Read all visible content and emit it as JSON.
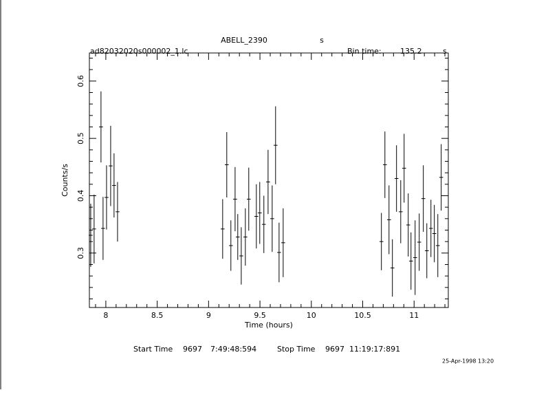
{
  "chart_data": {
    "type": "errorbar",
    "title": "ABELL_2390",
    "title_unit": "s",
    "file_name": "ad82032020s000002_1.lc",
    "bin_time_label": "Bin time:",
    "bin_time": 135.2,
    "bin_time_unit": "s",
    "x_label": "Time (hours)",
    "y_label": "Counts/s",
    "start_label": "Start Time",
    "start_day": 9697,
    "start_time": "7:49:48:594",
    "stop_label": "Stop Time",
    "stop_day": 9697,
    "stop_time": "11:19:17:891",
    "date_stamp": "25-Apr-1998 13:20",
    "xlim": [
      7.84,
      11.333
    ],
    "ylim": [
      0.205,
      0.649
    ],
    "xticks": [
      8,
      8.5,
      9,
      9.5,
      10,
      10.5,
      11
    ],
    "yticks": [
      0.3,
      0.4,
      0.5,
      0.6
    ],
    "xminorticks": [
      7.9,
      8.1,
      8.2,
      8.3,
      8.4,
      8.6,
      8.7,
      8.8,
      8.9,
      9.1,
      9.2,
      9.3,
      9.4,
      9.6,
      9.7,
      9.8,
      9.9,
      10.1,
      10.2,
      10.3,
      10.4,
      10.6,
      10.7,
      10.8,
      10.9,
      11.1,
      11.2,
      11.3
    ],
    "yminorticks": [
      0.22,
      0.24,
      0.26,
      0.28,
      0.32,
      0.34,
      0.36,
      0.38,
      0.42,
      0.44,
      0.46,
      0.48,
      0.52,
      0.54,
      0.56,
      0.58,
      0.62,
      0.64
    ],
    "color": "#000000",
    "xerr": 0.0188,
    "x": [
      7.853,
      7.886,
      7.953,
      7.973,
      8.007,
      8.047,
      8.08,
      8.114,
      9.137,
      9.177,
      9.217,
      9.258,
      9.284,
      9.318,
      9.358,
      9.391,
      9.465,
      9.498,
      9.538,
      9.579,
      9.619,
      9.652,
      9.686,
      9.726,
      10.682,
      10.716,
      10.756,
      10.789,
      10.829,
      10.87,
      10.903,
      10.943,
      10.97,
      11.01,
      11.05,
      11.09,
      11.124,
      11.164,
      11.197,
      11.231,
      11.264
    ],
    "values": [
      0.331,
      0.342,
      0.52,
      0.343,
      0.397,
      0.452,
      0.418,
      0.372,
      0.342,
      0.454,
      0.313,
      0.394,
      0.328,
      0.295,
      0.328,
      0.394,
      0.364,
      0.37,
      0.35,
      0.424,
      0.36,
      0.488,
      0.301,
      0.318,
      0.32,
      0.454,
      0.358,
      0.274,
      0.43,
      0.372,
      0.448,
      0.349,
      0.286,
      0.292,
      0.319,
      0.395,
      0.304,
      0.343,
      0.334,
      0.313,
      0.432
    ],
    "errors": [
      0.055,
      0.06,
      0.062,
      0.055,
      0.056,
      0.07,
      0.056,
      0.052,
      0.052,
      0.057,
      0.044,
      0.056,
      0.04,
      0.05,
      0.05,
      0.055,
      0.056,
      0.054,
      0.05,
      0.056,
      0.058,
      0.068,
      0.052,
      0.06,
      0.05,
      0.058,
      0.06,
      0.05,
      0.058,
      0.055,
      0.06,
      0.055,
      0.05,
      0.065,
      0.05,
      0.058,
      0.048,
      0.05,
      0.05,
      0.055,
      0.058
    ]
  }
}
